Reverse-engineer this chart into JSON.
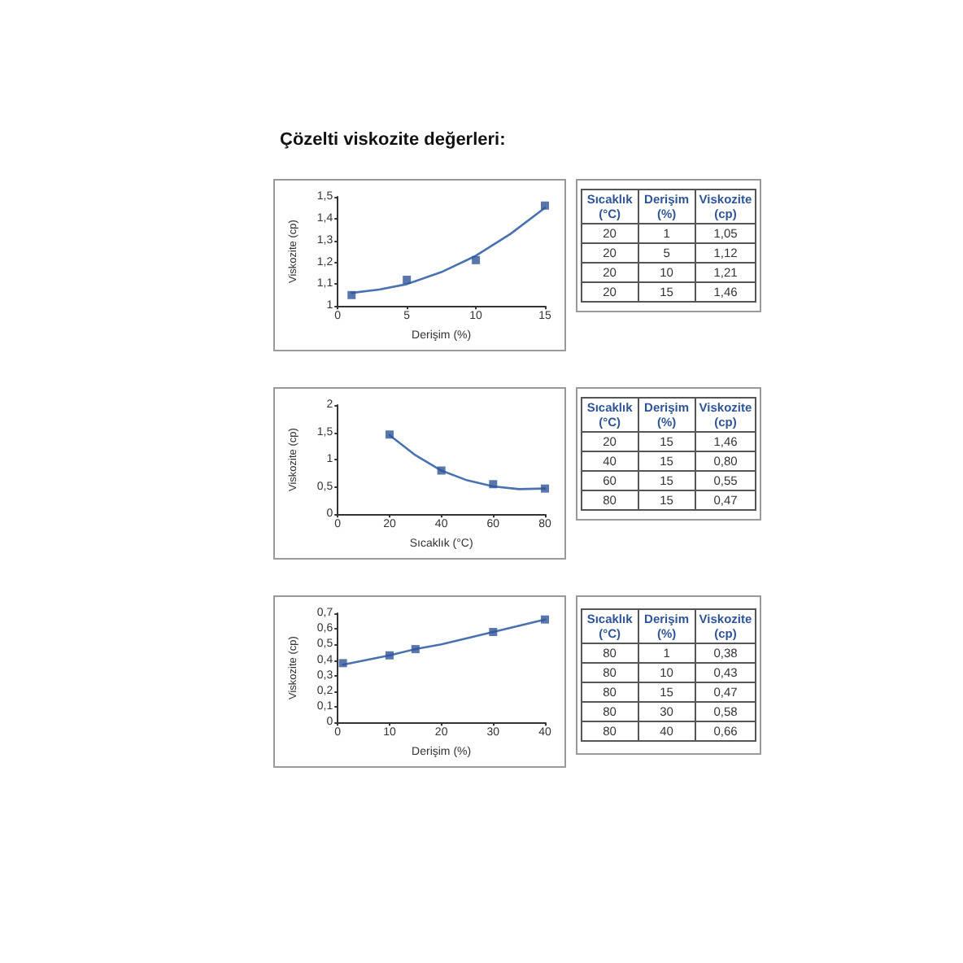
{
  "chart_data": [
    {
      "type": "scatter",
      "title": "Çözelti viskozite değerleri:",
      "xlabel": "Derişim (%)",
      "ylabel": "Viskozite (cp)",
      "marker": "square",
      "grid": false,
      "xlim": [
        0,
        15
      ],
      "xticks": [
        0,
        5,
        10,
        15
      ],
      "ylim": [
        1,
        1.5
      ],
      "yticks": [
        1,
        {
          "value": 1.1,
          "label": "1,1"
        },
        {
          "value": 1.2,
          "label": "1,2"
        },
        {
          "value": 1.3,
          "label": "1,3"
        },
        {
          "value": 1.4,
          "label": "1,4"
        },
        {
          "value": 1.5,
          "label": "1,5"
        }
      ],
      "series": [
        {
          "color": "#2f5597",
          "x": [
            1,
            5,
            10,
            15
          ],
          "values": [
            1.05,
            1.12,
            1.21,
            1.46
          ]
        },
        {
          "type": "line",
          "color": "#4a72b0",
          "marker": "none",
          "x": [
            1,
            3,
            5,
            7.5,
            10,
            12.5,
            15
          ],
          "values": [
            1.06,
            1.075,
            1.1,
            1.155,
            1.23,
            1.33,
            1.45
          ]
        }
      ],
      "annotations": [
        "Sıcaklık (°C)",
        "Derişim (%)",
        "Viskozite (cp)",
        "20",
        "1",
        "1,05",
        "20",
        "5",
        "1,12",
        "20",
        "10",
        "1,21",
        "20",
        "15",
        "1,46"
      ]
    },
    {
      "type": "scatter",
      "xlabel": "Sıcaklık (°C)",
      "ylabel": "Viskozite (cp)",
      "marker": "square",
      "grid": false,
      "xlim": [
        0,
        80
      ],
      "xticks": [
        0,
        20,
        40,
        60,
        80
      ],
      "ylim": [
        0,
        2
      ],
      "yticks": [
        0,
        {
          "value": 0.5,
          "label": "0,5"
        },
        1,
        {
          "value": 1.5,
          "label": "1,5"
        },
        2
      ],
      "series": [
        {
          "color": "#2f5597",
          "x": [
            20,
            40,
            60,
            80
          ],
          "values": [
            1.46,
            0.8,
            0.55,
            0.47
          ]
        },
        {
          "type": "line",
          "color": "#4a72b0",
          "marker": "none",
          "x": [
            20,
            30,
            40,
            50,
            60,
            70,
            80
          ],
          "values": [
            1.45,
            1.08,
            0.8,
            0.62,
            0.51,
            0.46,
            0.47
          ]
        }
      ],
      "annotations": [
        "Sıcaklık (°C)",
        "Derişim (%)",
        "Viskozite (cp)",
        "20",
        "15",
        "1,46",
        "40",
        "15",
        "0,80",
        "60",
        "15",
        "0,55",
        "80",
        "15",
        "0,47"
      ]
    },
    {
      "type": "scatter",
      "xlabel": "Derişim (%)",
      "ylabel": "Viskozite (cp)",
      "marker": "square",
      "grid": false,
      "xlim": [
        0,
        40
      ],
      "xticks": [
        0,
        10,
        20,
        30,
        40
      ],
      "ylim": [
        0,
        0.7
      ],
      "yticks": [
        0,
        {
          "value": 0.1,
          "label": "0,1"
        },
        {
          "value": 0.2,
          "label": "0,2"
        },
        {
          "value": 0.3,
          "label": "0,3"
        },
        {
          "value": 0.4,
          "label": "0,4"
        },
        {
          "value": 0.5,
          "label": "0,5"
        },
        {
          "value": 0.6,
          "label": "0,6"
        },
        {
          "value": 0.7,
          "label": "0,7"
        }
      ],
      "series": [
        {
          "color": "#2f5597",
          "x": [
            1,
            10,
            15,
            30,
            40
          ],
          "values": [
            0.38,
            0.43,
            0.47,
            0.58,
            0.66
          ]
        },
        {
          "type": "line",
          "color": "#4a72b0",
          "marker": "none",
          "x": [
            1,
            10,
            15,
            20,
            30,
            40
          ],
          "values": [
            0.37,
            0.43,
            0.47,
            0.5,
            0.58,
            0.66
          ]
        }
      ],
      "annotations": [
        "Sıcaklık (°C)",
        "Derişim (%)",
        "Viskozite (cp)",
        "80",
        "1",
        "0,38",
        "80",
        "10",
        "0,43",
        "80",
        "15",
        "0,47",
        "80",
        "30",
        "0,58",
        "80",
        "40",
        "0,66"
      ]
    }
  ]
}
